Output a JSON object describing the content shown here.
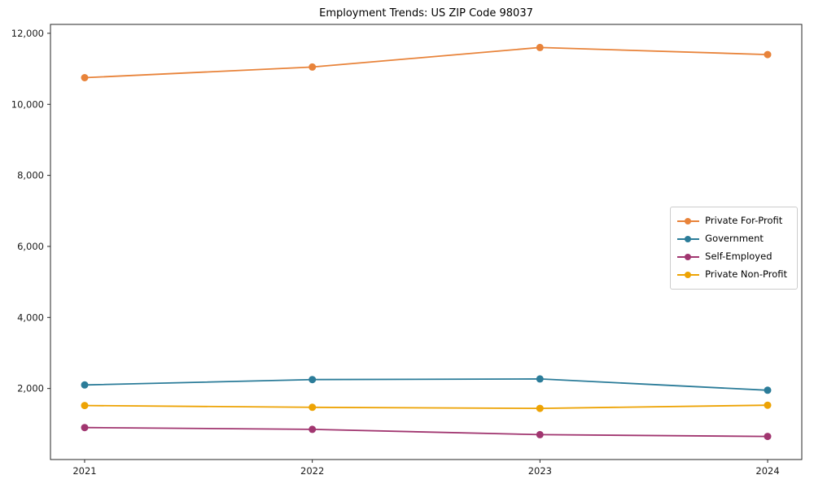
{
  "title": "Employment Trends: US ZIP Code 98037",
  "chart_data": {
    "type": "line",
    "title": "Employment Trends: US ZIP Code 98037",
    "x": [
      2021,
      2022,
      2023,
      2024
    ],
    "x_tick_labels": [
      "2021",
      "2022",
      "2023",
      "2024"
    ],
    "series": [
      {
        "name": "Private For-Profit",
        "color": "#e8833a",
        "values": [
          10750,
          11050,
          11600,
          11400
        ]
      },
      {
        "name": "Government",
        "color": "#2b7c99",
        "values": [
          2100,
          2250,
          2270,
          1950
        ]
      },
      {
        "name": "Self-Employed",
        "color": "#a13670",
        "values": [
          900,
          850,
          700,
          650
        ]
      },
      {
        "name": "Private Non-Profit",
        "color": "#eda304",
        "values": [
          1520,
          1470,
          1440,
          1530
        ]
      }
    ],
    "ylim": [
      0,
      12250
    ],
    "yticks": [
      2000,
      4000,
      6000,
      8000,
      10000,
      12000
    ],
    "ytick_labels": [
      "2,000",
      "4,000",
      "6,000",
      "8,000",
      "10,000",
      "12,000"
    ],
    "xlabel": "",
    "ylabel": "",
    "grid": false,
    "legend_position": "center right",
    "marker": "circle",
    "axis_color": "#262626"
  }
}
